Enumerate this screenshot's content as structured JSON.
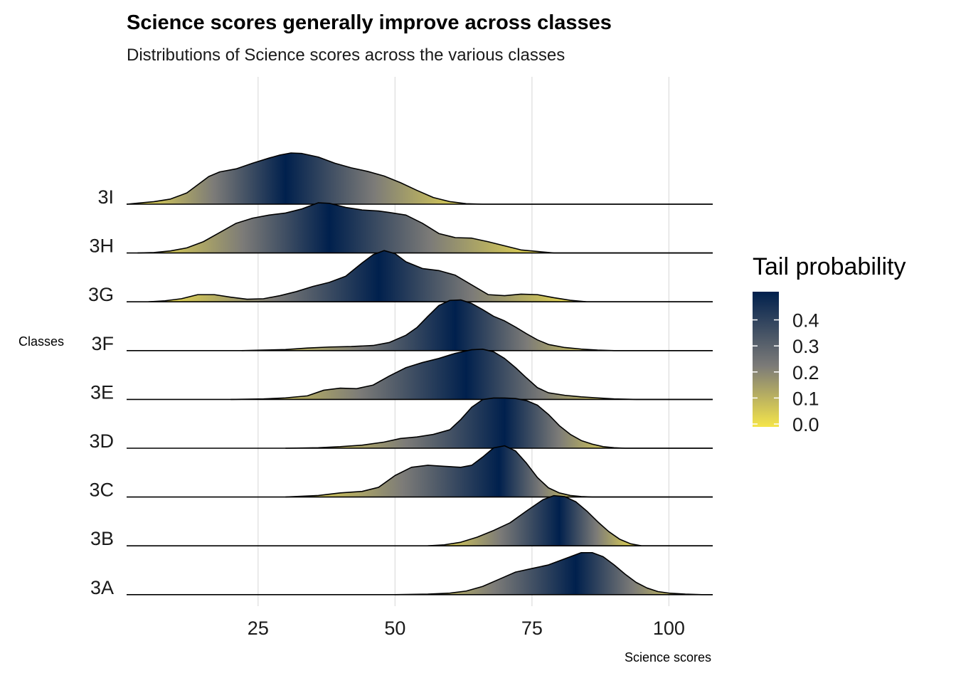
{
  "chart_data": {
    "type": "ridgeline",
    "title": "Science scores generally improve across classes",
    "subtitle": "Distributions of Science scores across the various classes",
    "xlabel": "Science scores",
    "ylabel": "Classes",
    "xlim": [
      1,
      108
    ],
    "x_ticks": [
      25,
      50,
      75,
      100
    ],
    "x_tick_labels": [
      "25",
      "50",
      "75",
      "100"
    ],
    "grid": true,
    "legend": {
      "title": "Tail probability",
      "position": "right",
      "range": [
        0.0,
        0.5
      ],
      "ticks": [
        0.0,
        0.1,
        0.2,
        0.3,
        0.4
      ],
      "tick_labels": [
        "0.0",
        "0.1",
        "0.2",
        "0.3",
        "0.4"
      ],
      "color_low": "#f5e54a",
      "color_mid": "#7c7b78",
      "color_high": "#00204d"
    },
    "categories": [
      "3I",
      "3H",
      "3G",
      "3F",
      "3E",
      "3D",
      "3C",
      "3B",
      "3A"
    ],
    "series": [
      {
        "name": "3I",
        "x_min": 1,
        "x_max": 108,
        "median": 30,
        "density": [
          [
            1,
            0
          ],
          [
            3,
            0.02
          ],
          [
            6,
            0.05
          ],
          [
            9,
            0.1
          ],
          [
            12,
            0.22
          ],
          [
            14,
            0.38
          ],
          [
            16,
            0.54
          ],
          [
            18,
            0.63
          ],
          [
            21,
            0.69
          ],
          [
            24,
            0.8
          ],
          [
            27,
            0.9
          ],
          [
            29,
            0.96
          ],
          [
            31,
            1.0
          ],
          [
            33,
            0.99
          ],
          [
            36,
            0.92
          ],
          [
            39,
            0.8
          ],
          [
            42,
            0.71
          ],
          [
            45,
            0.64
          ],
          [
            48,
            0.55
          ],
          [
            51,
            0.42
          ],
          [
            54,
            0.27
          ],
          [
            57,
            0.13
          ],
          [
            60,
            0.05
          ],
          [
            63,
            0.01
          ],
          [
            66,
            0
          ],
          [
            108,
            0
          ]
        ]
      },
      {
        "name": "3H",
        "x_min": 1,
        "x_max": 108,
        "median": 38,
        "density": [
          [
            3,
            0
          ],
          [
            6,
            0.01
          ],
          [
            9,
            0.04
          ],
          [
            12,
            0.1
          ],
          [
            15,
            0.22
          ],
          [
            18,
            0.4
          ],
          [
            21,
            0.58
          ],
          [
            24,
            0.68
          ],
          [
            27,
            0.74
          ],
          [
            30,
            0.78
          ],
          [
            33,
            0.86
          ],
          [
            36,
            0.98
          ],
          [
            38,
            0.97
          ],
          [
            41,
            0.89
          ],
          [
            44,
            0.84
          ],
          [
            47,
            0.82
          ],
          [
            49,
            0.79
          ],
          [
            52,
            0.74
          ],
          [
            55,
            0.58
          ],
          [
            58,
            0.38
          ],
          [
            61,
            0.3
          ],
          [
            64,
            0.29
          ],
          [
            67,
            0.22
          ],
          [
            70,
            0.14
          ],
          [
            73,
            0.06
          ],
          [
            76,
            0.03
          ],
          [
            79,
            0
          ],
          [
            108,
            0
          ]
        ]
      },
      {
        "name": "3G",
        "x_min": 1,
        "x_max": 108,
        "median": 47,
        "density": [
          [
            5,
            0
          ],
          [
            8,
            0.02
          ],
          [
            11,
            0.06
          ],
          [
            14,
            0.14
          ],
          [
            17,
            0.14
          ],
          [
            20,
            0.09
          ],
          [
            23,
            0.05
          ],
          [
            26,
            0.06
          ],
          [
            29,
            0.12
          ],
          [
            32,
            0.2
          ],
          [
            35,
            0.3
          ],
          [
            38,
            0.38
          ],
          [
            41,
            0.5
          ],
          [
            44,
            0.76
          ],
          [
            46,
            0.92
          ],
          [
            48,
            1.0
          ],
          [
            50,
            0.94
          ],
          [
            52,
            0.78
          ],
          [
            55,
            0.65
          ],
          [
            58,
            0.61
          ],
          [
            61,
            0.52
          ],
          [
            64,
            0.33
          ],
          [
            67,
            0.14
          ],
          [
            70,
            0.12
          ],
          [
            73,
            0.15
          ],
          [
            76,
            0.14
          ],
          [
            79,
            0.08
          ],
          [
            82,
            0.03
          ],
          [
            85,
            0
          ],
          [
            108,
            0
          ]
        ]
      },
      {
        "name": "3F",
        "x_min": 1,
        "x_max": 108,
        "median": 61,
        "density": [
          [
            22,
            0
          ],
          [
            26,
            0.01
          ],
          [
            30,
            0.02
          ],
          [
            34,
            0.05
          ],
          [
            38,
            0.07
          ],
          [
            42,
            0.08
          ],
          [
            46,
            0.1
          ],
          [
            49,
            0.16
          ],
          [
            52,
            0.3
          ],
          [
            54,
            0.45
          ],
          [
            56,
            0.67
          ],
          [
            58,
            0.88
          ],
          [
            60,
            0.98
          ],
          [
            62,
            0.99
          ],
          [
            64,
            0.92
          ],
          [
            66,
            0.8
          ],
          [
            68,
            0.67
          ],
          [
            70,
            0.58
          ],
          [
            72,
            0.46
          ],
          [
            74,
            0.33
          ],
          [
            76,
            0.21
          ],
          [
            78,
            0.12
          ],
          [
            81,
            0.06
          ],
          [
            84,
            0.03
          ],
          [
            87,
            0.01
          ],
          [
            90,
            0
          ],
          [
            108,
            0
          ]
        ]
      },
      {
        "name": "3E",
        "x_min": 1,
        "x_max": 108,
        "median": 63,
        "density": [
          [
            20,
            0
          ],
          [
            26,
            0.01
          ],
          [
            30,
            0.03
          ],
          [
            34,
            0.07
          ],
          [
            37,
            0.18
          ],
          [
            40,
            0.22
          ],
          [
            43,
            0.21
          ],
          [
            46,
            0.28
          ],
          [
            49,
            0.46
          ],
          [
            52,
            0.62
          ],
          [
            55,
            0.72
          ],
          [
            58,
            0.8
          ],
          [
            61,
            0.9
          ],
          [
            64,
            0.97
          ],
          [
            66,
            0.98
          ],
          [
            68,
            0.93
          ],
          [
            70,
            0.8
          ],
          [
            72,
            0.62
          ],
          [
            74,
            0.42
          ],
          [
            76,
            0.23
          ],
          [
            78,
            0.13
          ],
          [
            81,
            0.08
          ],
          [
            84,
            0.05
          ],
          [
            87,
            0.03
          ],
          [
            90,
            0.01
          ],
          [
            94,
            0
          ],
          [
            108,
            0
          ]
        ]
      },
      {
        "name": "3D",
        "x_min": 1,
        "x_max": 108,
        "median": 70,
        "density": [
          [
            30,
            0
          ],
          [
            36,
            0.01
          ],
          [
            40,
            0.03
          ],
          [
            44,
            0.06
          ],
          [
            48,
            0.12
          ],
          [
            51,
            0.19
          ],
          [
            54,
            0.22
          ],
          [
            57,
            0.27
          ],
          [
            60,
            0.36
          ],
          [
            62,
            0.56
          ],
          [
            64,
            0.8
          ],
          [
            66,
            0.95
          ],
          [
            68,
            0.98
          ],
          [
            70,
            0.98
          ],
          [
            72,
            0.97
          ],
          [
            74,
            0.93
          ],
          [
            76,
            0.84
          ],
          [
            78,
            0.66
          ],
          [
            80,
            0.44
          ],
          [
            82,
            0.27
          ],
          [
            84,
            0.15
          ],
          [
            86,
            0.08
          ],
          [
            88,
            0.03
          ],
          [
            90,
            0.01
          ],
          [
            92,
            0
          ],
          [
            108,
            0
          ]
        ]
      },
      {
        "name": "3C",
        "x_min": 1,
        "x_max": 108,
        "median": 69,
        "density": [
          [
            30,
            0
          ],
          [
            36,
            0.03
          ],
          [
            40,
            0.08
          ],
          [
            44,
            0.11
          ],
          [
            47,
            0.19
          ],
          [
            50,
            0.42
          ],
          [
            53,
            0.58
          ],
          [
            56,
            0.62
          ],
          [
            59,
            0.6
          ],
          [
            62,
            0.58
          ],
          [
            64,
            0.62
          ],
          [
            66,
            0.78
          ],
          [
            68,
            0.96
          ],
          [
            70,
            1.0
          ],
          [
            72,
            0.9
          ],
          [
            74,
            0.66
          ],
          [
            76,
            0.38
          ],
          [
            78,
            0.18
          ],
          [
            80,
            0.08
          ],
          [
            82,
            0.03
          ],
          [
            84,
            0.01
          ],
          [
            86,
            0
          ],
          [
            108,
            0
          ]
        ]
      },
      {
        "name": "3B",
        "x_min": 1,
        "x_max": 108,
        "median": 80,
        "density": [
          [
            56,
            0
          ],
          [
            59,
            0.02
          ],
          [
            62,
            0.07
          ],
          [
            65,
            0.17
          ],
          [
            68,
            0.3
          ],
          [
            71,
            0.45
          ],
          [
            74,
            0.68
          ],
          [
            77,
            0.9
          ],
          [
            79,
            0.98
          ],
          [
            81,
            0.96
          ],
          [
            83,
            0.86
          ],
          [
            85,
            0.68
          ],
          [
            87,
            0.47
          ],
          [
            89,
            0.28
          ],
          [
            91,
            0.13
          ],
          [
            93,
            0.04
          ],
          [
            95,
            0
          ],
          [
            108,
            0
          ]
        ]
      },
      {
        "name": "3A",
        "x_min": 1,
        "x_max": 108,
        "median": 83,
        "density": [
          [
            50,
            0
          ],
          [
            56,
            0.01
          ],
          [
            60,
            0.03
          ],
          [
            63,
            0.07
          ],
          [
            66,
            0.16
          ],
          [
            69,
            0.3
          ],
          [
            72,
            0.44
          ],
          [
            75,
            0.51
          ],
          [
            78,
            0.58
          ],
          [
            81,
            0.7
          ],
          [
            84,
            0.82
          ],
          [
            86,
            0.82
          ],
          [
            88,
            0.74
          ],
          [
            90,
            0.58
          ],
          [
            92,
            0.4
          ],
          [
            94,
            0.24
          ],
          [
            96,
            0.13
          ],
          [
            98,
            0.06
          ],
          [
            100,
            0.03
          ],
          [
            103,
            0.01
          ],
          [
            106,
            0
          ],
          [
            108,
            0
          ]
        ]
      }
    ]
  }
}
